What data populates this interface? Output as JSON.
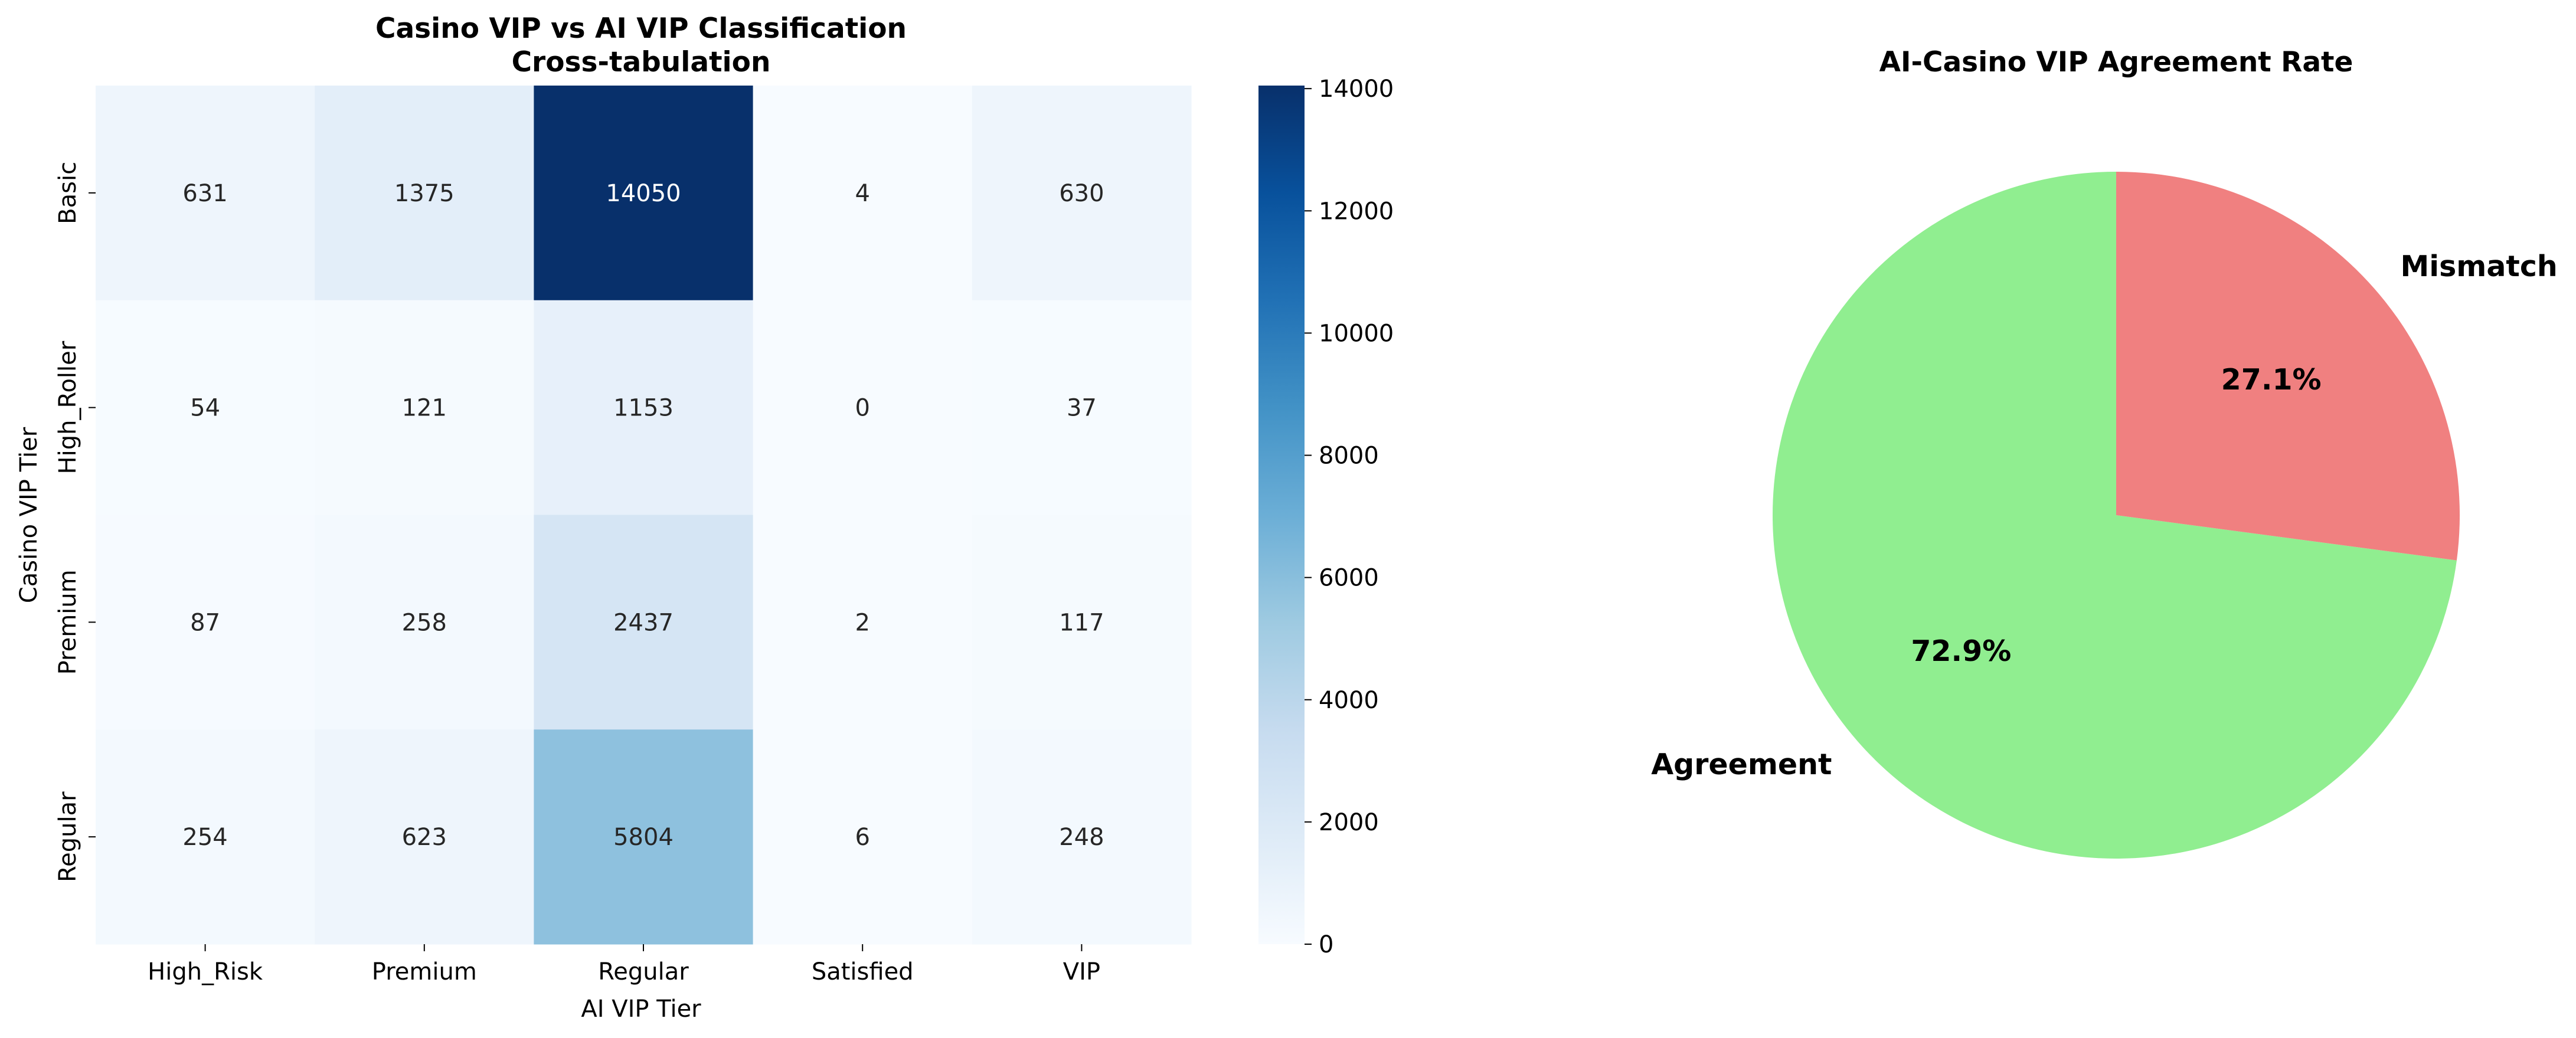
{
  "chart_data": [
    {
      "type": "heatmap",
      "title": "Casino VIP vs AI VIP Classification\nCross-tabulation",
      "xlabel": "AI VIP Tier",
      "ylabel": "Casino VIP Tier",
      "x_categories": [
        "High_Risk",
        "Premium",
        "Regular",
        "Satisfied",
        "VIP"
      ],
      "y_categories": [
        "Basic",
        "High_Roller",
        "Premium",
        "Regular"
      ],
      "values": [
        [
          631,
          1375,
          14050,
          4,
          630
        ],
        [
          54,
          121,
          1153,
          0,
          37
        ],
        [
          87,
          258,
          2437,
          2,
          117
        ],
        [
          254,
          623,
          5804,
          6,
          248
        ]
      ],
      "colorbar": {
        "min": 0,
        "max": 14050,
        "ticks": [
          0,
          2000,
          4000,
          6000,
          8000,
          10000,
          12000,
          14000
        ],
        "colormap": "Blues"
      },
      "grid": false
    },
    {
      "type": "pie",
      "title": "AI-Casino VIP Agreement Rate",
      "labels": [
        "Agreement",
        "Mismatch"
      ],
      "values": [
        72.9,
        27.1
      ],
      "value_labels": [
        "72.9%",
        "27.1%"
      ],
      "colors": [
        "#90ee90",
        "#f08080"
      ],
      "start_angle_deg": 90,
      "direction": "counterclockwise"
    }
  ]
}
